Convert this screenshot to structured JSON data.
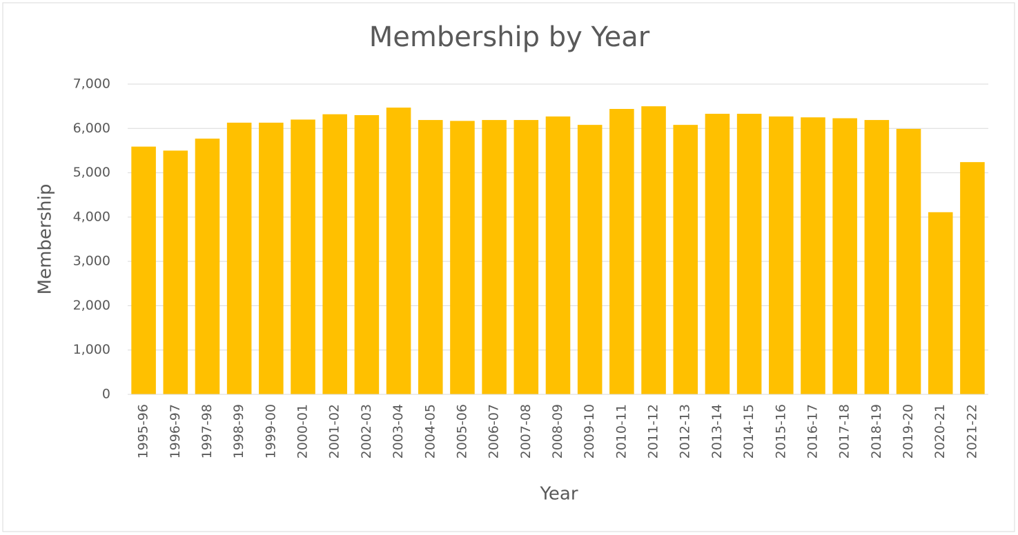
{
  "chart_data": {
    "type": "bar",
    "title": "Membership by Year",
    "x_label": "Year",
    "y_label": "Membership",
    "categories": [
      "1995-96",
      "1996-97",
      "1997-98",
      "1998-99",
      "1999-00",
      "2000-01",
      "2001-02",
      "2002-03",
      "2003-04",
      "2004-05",
      "2005-06",
      "2006-07",
      "2007-08",
      "2008-09",
      "2009-10",
      "2010-11",
      "2011-12",
      "2012-13",
      "2013-14",
      "2014-15",
      "2015-16",
      "2016-17",
      "2017-18",
      "2018-19",
      "2019-20",
      "2020-21",
      "2021-22"
    ],
    "values": [
      5590,
      5500,
      5770,
      6130,
      6130,
      6200,
      6320,
      6300,
      6470,
      6190,
      6170,
      6190,
      6190,
      6270,
      6080,
      6440,
      6500,
      6080,
      6330,
      6330,
      6270,
      6250,
      6230,
      6190,
      5990,
      4110,
      5240
    ],
    "color": "#ffc000",
    "ylim": [
      0,
      7000
    ],
    "yticks": [
      0,
      {
        "value": 1000,
        "label": "1,000"
      },
      {
        "value": 2000,
        "label": "2,000"
      },
      {
        "value": 3000,
        "label": "3,000"
      },
      {
        "value": 4000,
        "label": "4,000"
      },
      {
        "value": 5000,
        "label": "5,000"
      },
      {
        "value": 6000,
        "label": "6,000"
      },
      {
        "value": 7000,
        "label": "7,000"
      }
    ],
    "grid": true
  }
}
